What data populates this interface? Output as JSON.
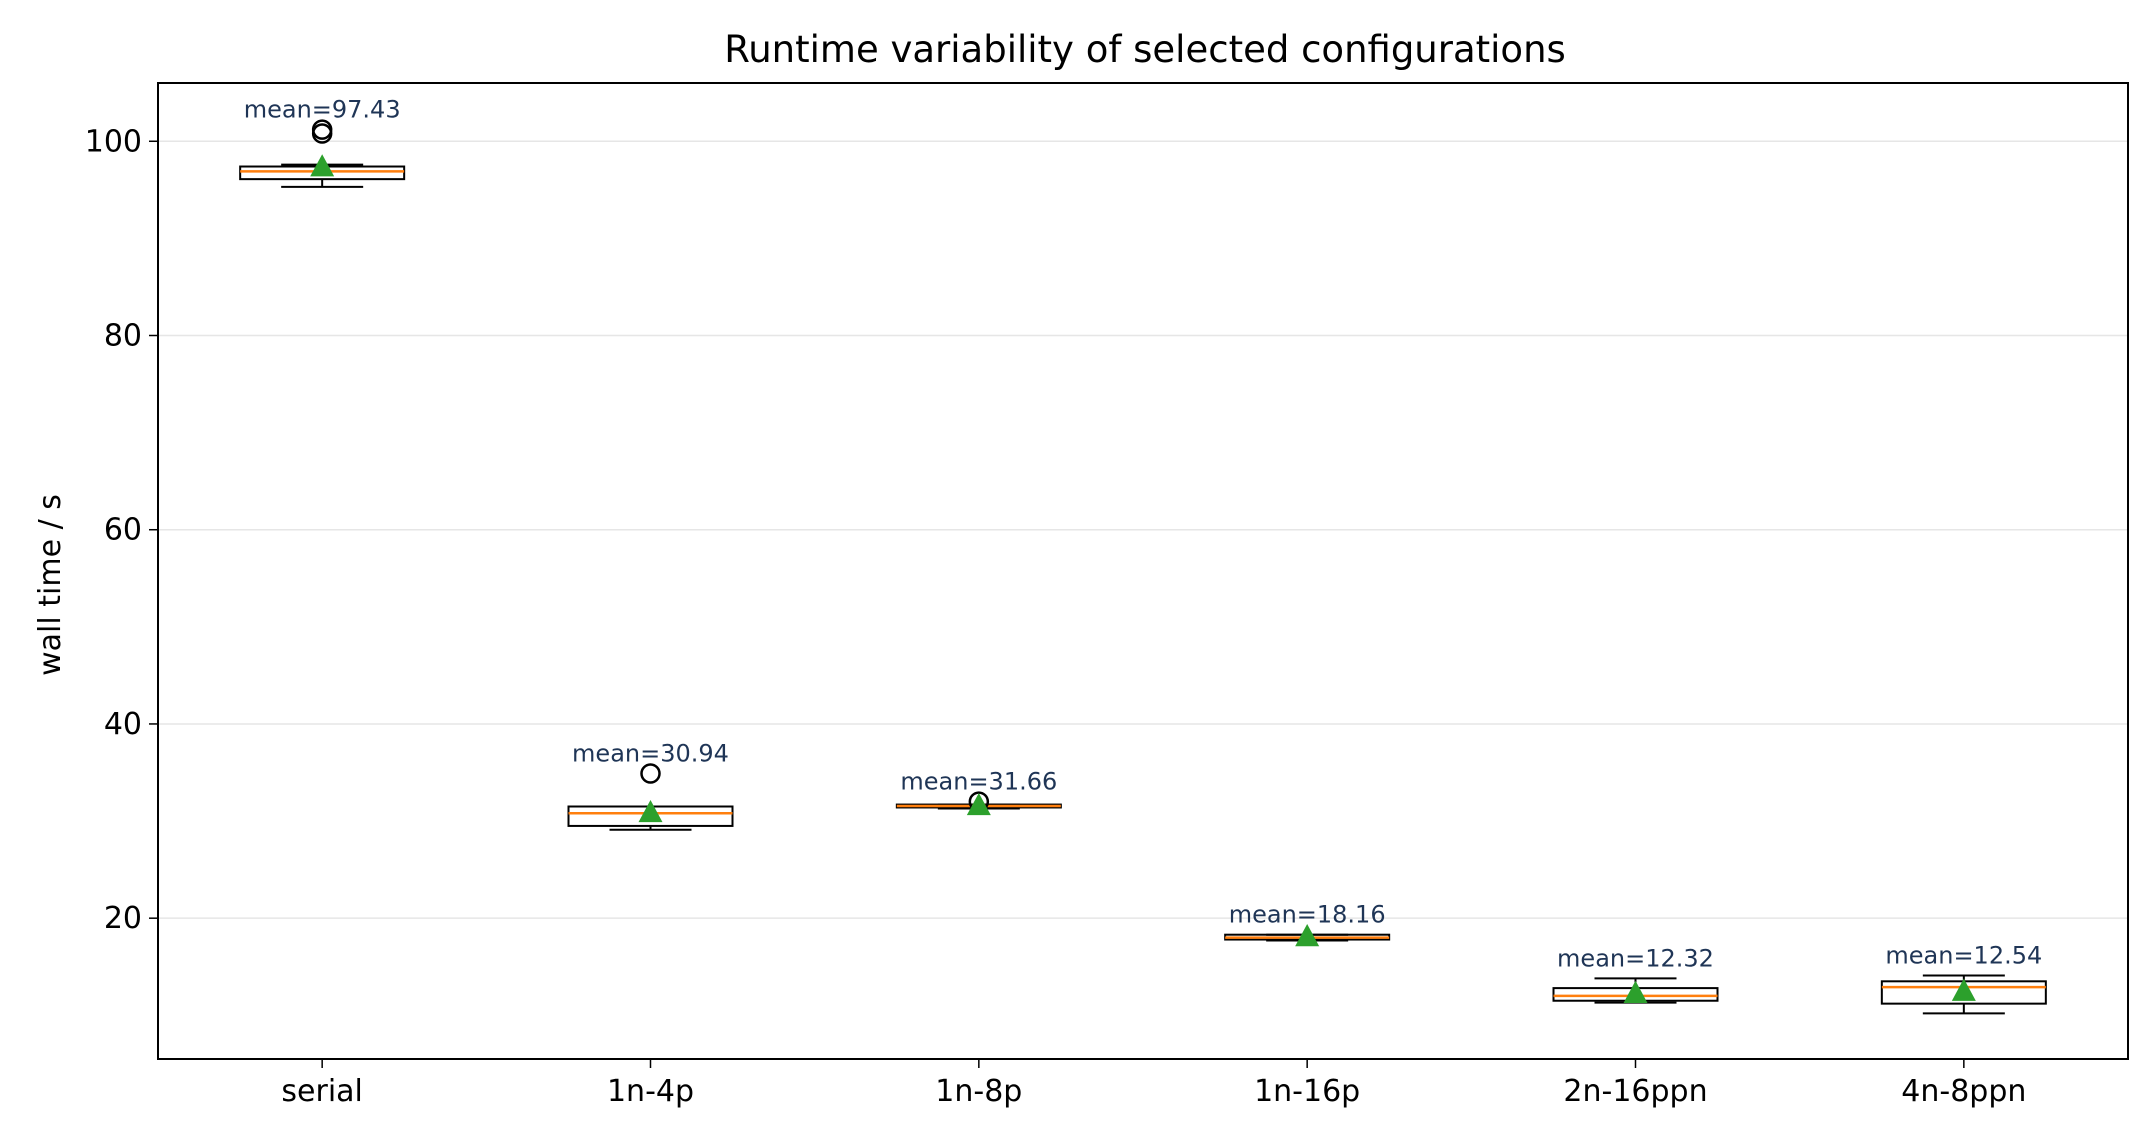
{
  "chart_data": {
    "type": "box",
    "title": "Runtime variability of selected configurations",
    "xlabel": "",
    "ylabel": "wall time / s",
    "ylim": [
      5.5,
      106
    ],
    "yticks": [
      20,
      40,
      60,
      80,
      100
    ],
    "grid": "horizontal",
    "categories": [
      "serial",
      "1n-4p",
      "1n-8p",
      "1n-16p",
      "2n-16ppn",
      "4n-8ppn"
    ],
    "boxes": [
      {
        "category": "serial",
        "whislo": 95.3,
        "q1": 96.1,
        "med": 96.9,
        "q3": 97.4,
        "whishi": 97.6,
        "mean": 97.43,
        "fliers": [
          101.2,
          100.8
        ],
        "annotation": "mean=97.43"
      },
      {
        "category": "1n-4p",
        "whislo": 29.1,
        "q1": 29.5,
        "med": 30.8,
        "q3": 31.5,
        "whishi": 31.5,
        "mean": 30.94,
        "fliers": [
          34.9
        ],
        "annotation": "mean=30.94"
      },
      {
        "category": "1n-8p",
        "whislo": 31.3,
        "q1": 31.4,
        "med": 31.55,
        "q3": 31.7,
        "whishi": 31.7,
        "mean": 31.66,
        "fliers": [
          32.0
        ],
        "annotation": "mean=31.66"
      },
      {
        "category": "1n-16p",
        "whislo": 17.7,
        "q1": 17.8,
        "med": 18.0,
        "q3": 18.3,
        "whishi": 18.3,
        "mean": 18.16,
        "fliers": [],
        "annotation": "mean=18.16"
      },
      {
        "category": "2n-16ppn",
        "whislo": 11.3,
        "q1": 11.5,
        "med": 12.0,
        "q3": 12.8,
        "whishi": 13.8,
        "mean": 12.32,
        "fliers": [],
        "annotation": "mean=12.32"
      },
      {
        "category": "4n-8ppn",
        "whislo": 10.2,
        "q1": 11.2,
        "med": 12.9,
        "q3": 13.5,
        "whishi": 14.1,
        "mean": 12.54,
        "fliers": [],
        "annotation": "mean=12.54"
      }
    ],
    "colors": {
      "box": "#000000",
      "median": "#ff7f0e",
      "mean_marker": "#2ca02c",
      "annotation": "#1f3556",
      "grid": "#e6e6e6"
    }
  }
}
